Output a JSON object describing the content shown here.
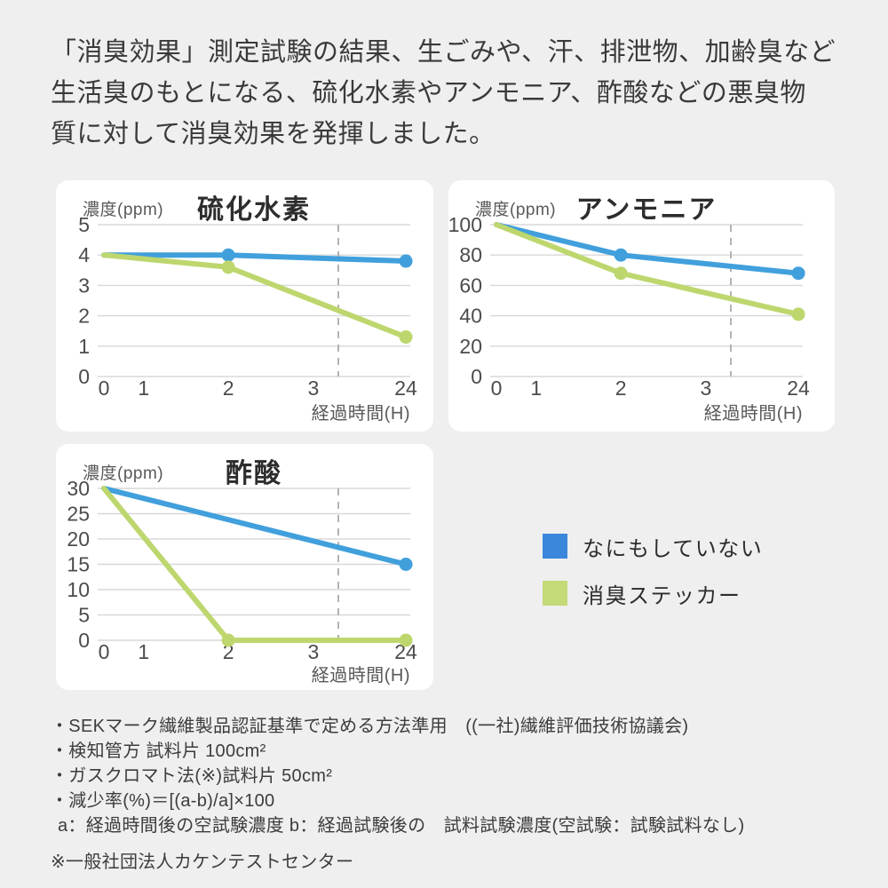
{
  "heading": {
    "lines": [
      "「消臭効果」測定試験の結果、生ごみや、汗、排泄物、加齢臭など",
      "生活臭のもとになる、硫化水素やアンモニア、酢酸などの悪臭物",
      "質に対して消臭効果を発揮しました。"
    ]
  },
  "colors": {
    "page_bg": "#efefef",
    "card_bg": "#ffffff",
    "grid": "#d8d8d8",
    "dashed": "#b3b3b3",
    "axis_text": "#4c4c4c",
    "line_blue": "#41a0dc",
    "line_green": "#bdd76e",
    "legend_blue": "#3a87db",
    "legend_green": "#c3da76"
  },
  "chart_data": [
    {
      "type": "line",
      "title": "硫化水素",
      "ylabel": "濃度(ppm)",
      "xlabel": "経過時間(H)",
      "x_tick_labels": [
        "0",
        "1",
        "2",
        "3",
        "24"
      ],
      "x_tick_values": [
        0,
        1,
        2,
        3,
        24
      ],
      "y_ticks": [
        5,
        4,
        3,
        2,
        1,
        0
      ],
      "ylim": [
        0,
        5
      ],
      "grid": true,
      "axis_break_dashed_between": [
        3,
        24
      ],
      "series": [
        {
          "key": "untreated",
          "name": "なにもしていない",
          "color": "#41a0dc",
          "x": [
            0,
            2,
            24
          ],
          "values": [
            4,
            4,
            3.8
          ],
          "markers_at": [
            2,
            24
          ]
        },
        {
          "key": "deodorant-sticker",
          "name": "消臭ステッカー",
          "color": "#bdd76e",
          "x": [
            0,
            2,
            24
          ],
          "values": [
            4,
            3.6,
            1.3
          ],
          "markers_at": [
            2,
            24
          ]
        }
      ]
    },
    {
      "type": "line",
      "title": "アンモニア",
      "ylabel": "濃度(ppm)",
      "xlabel": "経過時間(H)",
      "x_tick_labels": [
        "0",
        "1",
        "2",
        "3",
        "24"
      ],
      "x_tick_values": [
        0,
        1,
        2,
        3,
        24
      ],
      "y_ticks": [
        100,
        80,
        60,
        40,
        20,
        0
      ],
      "ylim": [
        0,
        100
      ],
      "grid": true,
      "axis_break_dashed_between": [
        3,
        24
      ],
      "series": [
        {
          "key": "untreated",
          "name": "なにもしていない",
          "color": "#41a0dc",
          "x": [
            0,
            2,
            24
          ],
          "values": [
            100,
            80,
            68
          ],
          "markers_at": [
            2,
            24
          ]
        },
        {
          "key": "deodorant-sticker",
          "name": "消臭ステッカー",
          "color": "#bdd76e",
          "x": [
            0,
            2,
            24
          ],
          "values": [
            100,
            68,
            41
          ],
          "markers_at": [
            2,
            24
          ]
        }
      ]
    },
    {
      "type": "line",
      "title": "酢酸",
      "ylabel": "濃度(ppm)",
      "xlabel": "経過時間(H)",
      "x_tick_labels": [
        "0",
        "1",
        "2",
        "3",
        "24"
      ],
      "x_tick_values": [
        0,
        1,
        2,
        3,
        24
      ],
      "y_ticks": [
        30,
        25,
        20,
        15,
        10,
        5,
        0
      ],
      "ylim": [
        0,
        30
      ],
      "grid": true,
      "axis_break_dashed_between": [
        3,
        24
      ],
      "series": [
        {
          "key": "untreated",
          "name": "なにもしていない",
          "color": "#41a0dc",
          "x": [
            0,
            24
          ],
          "values": [
            30,
            15
          ],
          "markers_at": [
            24
          ]
        },
        {
          "key": "deodorant-sticker",
          "name": "消臭ステッカー",
          "color": "#bdd76e",
          "x": [
            0,
            2,
            24
          ],
          "values": [
            30,
            0,
            0
          ],
          "markers_at": [
            2,
            24
          ]
        }
      ]
    }
  ],
  "legend": {
    "position": "bottom-right",
    "items": [
      {
        "label": "なにもしていない",
        "color": "#3a87db"
      },
      {
        "label": "消臭ステッカー",
        "color": "#c3da76"
      }
    ]
  },
  "footnotes": {
    "items": [
      "・SEKマーク繊維製品認証基準で定める方法準用　((一社)繊維評価技術協議会)",
      "・検知管方 試料片 100cm²",
      "・ガスクロマト法(※)試料片 50cm²",
      "・減少率(%)＝[(a-b)/a]×100",
      "a：経過時間後の空試験濃度  b：経過試験後の　試料試験濃度(空試験：試験試料なし)",
      "※一般社団法人カケンテストセンター"
    ]
  }
}
